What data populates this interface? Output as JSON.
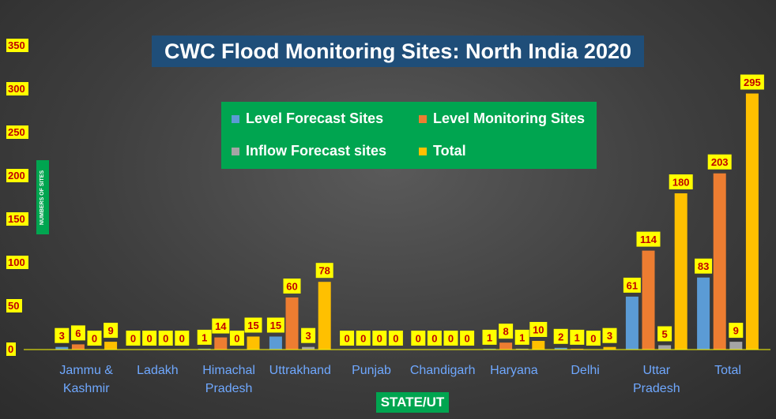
{
  "chart_data": {
    "type": "bar",
    "title": "CWC Flood Monitoring Sites: North India 2020",
    "xlabel": "STATE/UT",
    "ylabel": "NUMBERS OF SITES",
    "ylim": [
      0,
      350
    ],
    "yticks": [
      "0",
      "50",
      "100",
      "150",
      "200",
      "250",
      "300",
      "350"
    ],
    "grid": false,
    "legend_position": "top-center",
    "categories": [
      [
        "Jammu &",
        "Kashmir"
      ],
      [
        "Ladakh"
      ],
      [
        "Himachal",
        "Pradesh"
      ],
      [
        "Uttrakhand"
      ],
      [
        "Punjab"
      ],
      [
        "Chandigarh"
      ],
      [
        "Haryana"
      ],
      [
        "Delhi"
      ],
      [
        "Uttar",
        "Pradesh"
      ],
      [
        "Total"
      ]
    ],
    "series": [
      {
        "name": "Level Forecast Sites",
        "color": "#5b9bd5",
        "values": [
          3,
          0,
          1,
          15,
          0,
          0,
          1,
          2,
          61,
          83
        ]
      },
      {
        "name": "Level Monitoring Sites",
        "color": "#ed7d31",
        "values": [
          6,
          0,
          14,
          60,
          0,
          0,
          8,
          1,
          114,
          203
        ]
      },
      {
        "name": "Inflow Forecast sites",
        "color": "#a5a5a5",
        "values": [
          0,
          0,
          0,
          3,
          0,
          0,
          1,
          0,
          5,
          9
        ]
      },
      {
        "name": "Total",
        "color": "#ffc000",
        "values": [
          9,
          0,
          15,
          78,
          0,
          0,
          10,
          3,
          180,
          295
        ]
      }
    ]
  }
}
